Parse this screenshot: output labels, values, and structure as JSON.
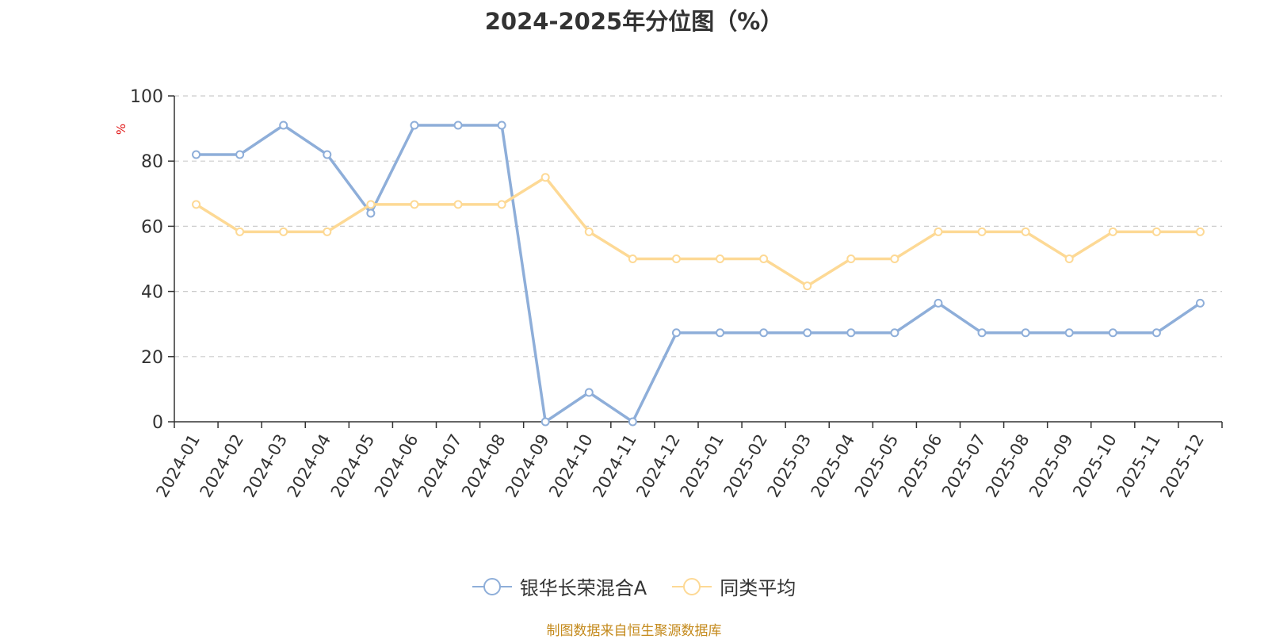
{
  "chart_data": {
    "type": "line",
    "title": "2024-2025年分位图（%）",
    "ylabel": "%",
    "xlabel": "",
    "ylim": [
      0,
      100
    ],
    "yticks": [
      0,
      20,
      40,
      60,
      80,
      100
    ],
    "grid": true,
    "legend_position": "bottom-center",
    "categories": [
      "2024-01",
      "2024-02",
      "2024-03",
      "2024-04",
      "2024-05",
      "2024-06",
      "2024-07",
      "2024-08",
      "2024-09",
      "2024-10",
      "2024-11",
      "2024-12",
      "2025-01",
      "2025-02",
      "2025-03",
      "2025-04",
      "2025-05",
      "2025-06",
      "2025-07",
      "2025-08",
      "2025-09",
      "2025-10",
      "2025-11",
      "2025-12"
    ],
    "series": [
      {
        "name": "银华长荣混合A",
        "color": "#8eaed9",
        "values": [
          82,
          82,
          91,
          82,
          64,
          91,
          91,
          91,
          0,
          9,
          0,
          27.3,
          27.3,
          27.3,
          27.3,
          27.3,
          27.3,
          36.4,
          27.3,
          27.3,
          27.3,
          27.3,
          27.3,
          36.4
        ]
      },
      {
        "name": "同类平均",
        "color": "#fdd995",
        "values": [
          66.7,
          58.3,
          58.3,
          58.3,
          66.7,
          66.7,
          66.7,
          66.7,
          75,
          58.3,
          50,
          50,
          50,
          50,
          41.7,
          50,
          50,
          58.3,
          58.3,
          58.3,
          50,
          58.3,
          58.3,
          58.3
        ]
      }
    ]
  },
  "source_note": "制图数据来自恒生聚源数据库",
  "colors": {
    "axis": "#333333",
    "grid": "#cccccc",
    "ylabel": "#e01010",
    "source": "#c48a1c"
  }
}
